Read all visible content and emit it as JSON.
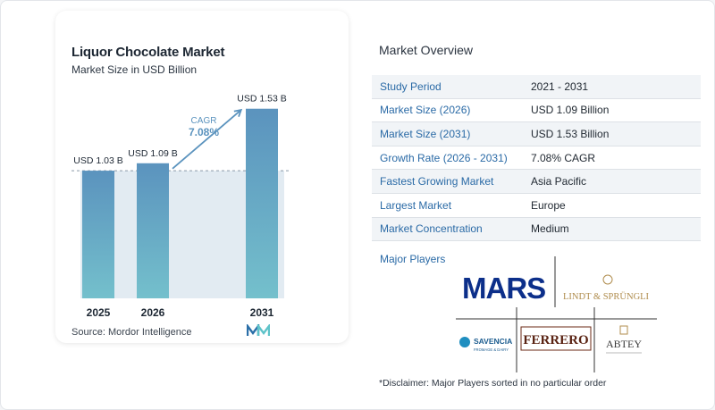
{
  "chart_data": {
    "type": "bar",
    "title": "Liquor Chocolate Market",
    "subtitle": "Market Size in USD Billion",
    "categories": [
      "2025",
      "2026",
      "2031"
    ],
    "values": [
      1.03,
      1.09,
      1.53
    ],
    "data_labels": [
      "USD 1.03 B",
      "USD 1.09 B",
      "USD 1.53 B"
    ],
    "ylim": [
      0,
      1.6
    ],
    "cagr_label": "CAGR",
    "cagr_value": "7.08%",
    "colors": {
      "bar_top": "#5b93be",
      "bar_bottom": "#74c0cc",
      "shade": "#e2ebf2",
      "arrow": "#5b93be"
    },
    "grid": false
  },
  "source": "Source:  Mordor Intelligence",
  "overview": {
    "title": "Market Overview",
    "rows": [
      {
        "label": "Study Period",
        "value": "2021 - 2031"
      },
      {
        "label": "Market Size (2026)",
        "value": "USD 1.09 Billion"
      },
      {
        "label": "Market Size (2031)",
        "value": "USD 1.53 Billion"
      },
      {
        "label": "Growth Rate (2026 - 2031)",
        "value": "7.08% CAGR"
      },
      {
        "label": "Fastest Growing Market",
        "value": "Asia Pacific"
      },
      {
        "label": "Largest Market",
        "value": "Europe"
      },
      {
        "label": "Market Concentration",
        "value": "Medium"
      }
    ]
  },
  "players": {
    "title": "Major Players",
    "logos": {
      "mars": "MARS",
      "lindt": "LINDT & SPRÜNGLI",
      "savencia": "SAVENCIA",
      "savencia_sub": "FROMAGE & DAIRY",
      "ferrero": "FERRERO",
      "abtey": "ABTEY"
    }
  },
  "disclaimer": "*Disclaimer: Major Players sorted in no particular order"
}
